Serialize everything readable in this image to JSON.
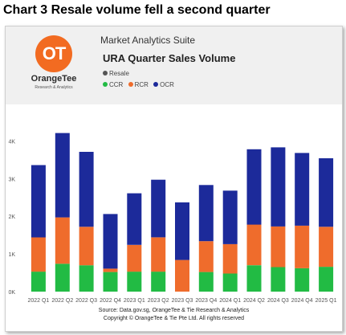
{
  "page": {
    "title": "Chart 3 Resale volume fell a second quarter"
  },
  "header": {
    "logo_letters": "OT",
    "logo_name": "OrangeTee",
    "logo_tagline": "Research & Analytics",
    "suite_title": "Market Analytics Suite"
  },
  "footer": {
    "source": "Source: Data.gov.sg, OrangeTee & Tie Research & Analytics",
    "copyright": "Copyright © OrangeTee & Tie Pte Ltd. All rights reserved"
  },
  "colors": {
    "brand_orange": "#f26b21",
    "ccr": "#22bb44",
    "rcr": "#ef6c2c",
    "ocr": "#1c2a9a",
    "resale": "#555555"
  },
  "chart_data": {
    "type": "bar",
    "stacked": true,
    "title": "URA Quarter Sales Volume",
    "legend": {
      "position": "top-left",
      "entries": [
        {
          "label": "Resale",
          "color": "#555555"
        },
        {
          "label": "CCR",
          "color": "#22bb44"
        },
        {
          "label": "RCR",
          "color": "#ef6c2c"
        },
        {
          "label": "OCR",
          "color": "#1c2a9a"
        }
      ]
    },
    "categories": [
      "2022 Q1",
      "2022 Q2",
      "2022 Q3",
      "2022 Q4",
      "2023 Q1",
      "2023 Q2",
      "2023 Q3",
      "2023 Q4",
      "2024 Q1",
      "2024 Q2",
      "2024 Q3",
      "2024 Q4",
      "2025 Q1"
    ],
    "series": [
      {
        "name": "CCR",
        "color": "#22bb44",
        "values": [
          530,
          740,
          700,
          520,
          530,
          530,
          0,
          520,
          480,
          700,
          650,
          620,
          660
        ]
      },
      {
        "name": "RCR",
        "color": "#ef6c2c",
        "values": [
          910,
          1230,
          1020,
          90,
          710,
          910,
          840,
          820,
          780,
          1080,
          1080,
          1130,
          1060
        ]
      },
      {
        "name": "OCR",
        "color": "#1c2a9a",
        "values": [
          1920,
          2240,
          1990,
          1450,
          1370,
          1530,
          1530,
          1490,
          1420,
          2000,
          2100,
          1930,
          1820
        ]
      }
    ],
    "y_ticks": [
      "0K",
      "1K",
      "2K",
      "3K",
      "4K"
    ],
    "ylim": [
      0,
      4500
    ],
    "gridlines": false
  }
}
